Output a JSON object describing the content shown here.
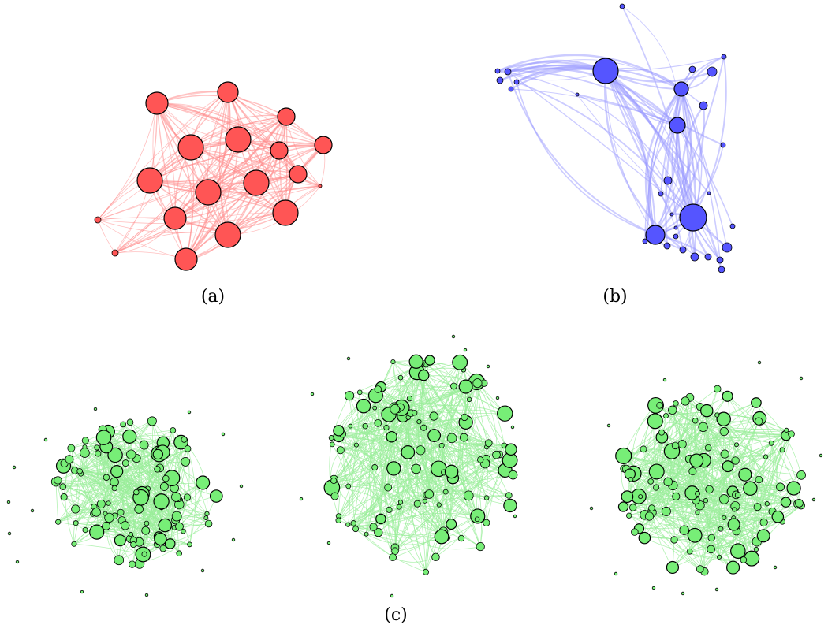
{
  "captions": {
    "a": "(a)",
    "b": "(b)",
    "c": "(c)"
  },
  "colors": {
    "red_node": "#ff5555",
    "red_edge": "#ff8c8c",
    "blue_node": "#5555ff",
    "blue_edge": "#9a9aff",
    "green_node": "#77ee77",
    "green_edge": "#99ee99",
    "node_stroke": "#000000"
  },
  "panels": [
    "network-a",
    "network-b",
    "network-c1",
    "network-c2",
    "network-c3"
  ]
}
